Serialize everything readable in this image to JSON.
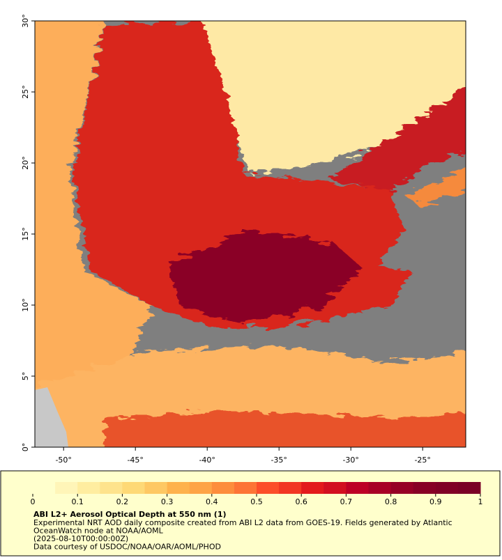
{
  "map": {
    "xlim": [
      -52,
      -22
    ],
    "ylim": [
      0,
      30
    ],
    "xticks": [
      {
        "value": -50,
        "label": "-50°"
      },
      {
        "value": -45,
        "label": "-45°"
      },
      {
        "value": -40,
        "label": "-40°"
      },
      {
        "value": -35,
        "label": "-35°"
      },
      {
        "value": -30,
        "label": "-30°"
      },
      {
        "value": -25,
        "label": "-25°"
      }
    ],
    "yticks": [
      {
        "value": 0,
        "label": "0°"
      },
      {
        "value": 5,
        "label": "5°"
      },
      {
        "value": 10,
        "label": "10°"
      },
      {
        "value": 15,
        "label": "15°"
      },
      {
        "value": 20,
        "label": "20°"
      },
      {
        "value": 25,
        "label": "25°"
      },
      {
        "value": 30,
        "label": "30°"
      }
    ]
  },
  "colorbar": {
    "lim": [
      0,
      1
    ],
    "ticks": [
      0,
      0.1,
      0.2,
      0.3,
      0.4,
      0.5,
      0.6,
      0.7,
      0.8,
      0.9,
      1
    ],
    "colors": [
      "#ffffcc",
      "#fff5b8",
      "#ffeda0",
      "#fee38c",
      "#fed976",
      "#fec863",
      "#feb24c",
      "#fea446",
      "#fd8d3c",
      "#fd7435",
      "#fc4e2a",
      "#f23623",
      "#e31a1c",
      "#d20f20",
      "#bd0026",
      "#a80026",
      "#960026",
      "#870026",
      "#800026",
      "#7a0026"
    ]
  },
  "caption": {
    "title": "ABI L2+ Aerosol Optical Depth at 550 nm (1)",
    "lines": [
      "Experimental NRT AOD daily composite created from ABI L2 data from GOES-19. Fields generated by Atlantic",
      "OceanWatch node at NOAA/AOML",
      "(2025-08-10T00:00:00Z)",
      "Data courtesy of USDOC/NOAA/OAR/AOML/PHOD"
    ]
  }
}
